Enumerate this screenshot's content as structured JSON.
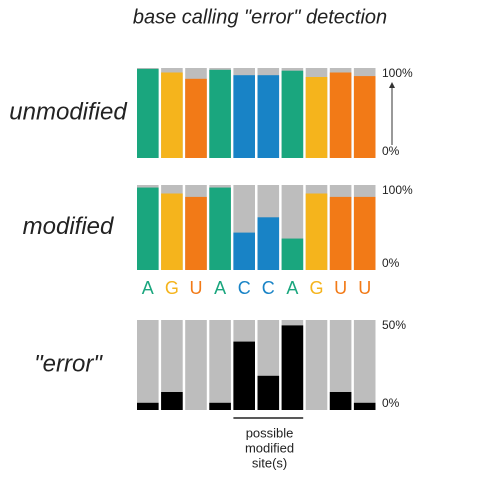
{
  "title": "base calling \"error\" detection",
  "bases": {
    "labels": [
      "A",
      "G",
      "U",
      "A",
      "C",
      "C",
      "A",
      "G",
      "U",
      "U"
    ],
    "colors": [
      "#1aa67e",
      "#f5b41c",
      "#f27a17",
      "#1aa67e",
      "#1883c6",
      "#1883c6",
      "#1aa67e",
      "#f5b41c",
      "#f27a17",
      "#f27a17"
    ]
  },
  "chart_data": [
    {
      "type": "bar",
      "label": "unmodified",
      "values": [
        99,
        95,
        88,
        98,
        92,
        92,
        97,
        90,
        95,
        91
      ],
      "colors": [
        "#1aa67e",
        "#f5b41c",
        "#f27a17",
        "#1aa67e",
        "#1883c6",
        "#1883c6",
        "#1aa67e",
        "#f5b41c",
        "#f27a17",
        "#f27a17"
      ],
      "ylim": [
        0,
        100
      ],
      "yticks": [
        {
          "value": 0,
          "label": "0%"
        },
        {
          "value": 100,
          "label": "100%"
        }
      ]
    },
    {
      "type": "bar",
      "label": "modified",
      "values": [
        97,
        90,
        86,
        97,
        44,
        62,
        37,
        90,
        86,
        86
      ],
      "colors": [
        "#1aa67e",
        "#f5b41c",
        "#f27a17",
        "#1aa67e",
        "#1883c6",
        "#1883c6",
        "#1aa67e",
        "#f5b41c",
        "#f27a17",
        "#f27a17"
      ],
      "ylim": [
        0,
        100
      ],
      "yticks": [
        {
          "value": 0,
          "label": "0%"
        },
        {
          "value": 100,
          "label": "100%"
        }
      ]
    },
    {
      "type": "bar",
      "label": "\"error\"",
      "values": [
        4,
        10,
        0,
        4,
        38,
        19,
        47,
        0,
        10,
        4
      ],
      "color": "#000000",
      "ylim": [
        0,
        50
      ],
      "yticks": [
        {
          "value": 0,
          "label": "0%"
        },
        {
          "value": 50,
          "label": "50%"
        }
      ],
      "annotation": [
        "possible",
        "modified",
        "site(s)"
      ]
    }
  ]
}
